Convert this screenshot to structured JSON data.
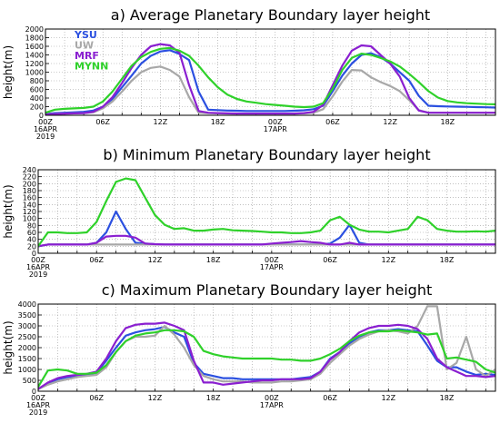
{
  "colors": {
    "YSU": "#2b50e0",
    "UW": "#a8a8a8",
    "MRF": "#8a1fd0",
    "MYNN": "#2fd12a"
  },
  "chart_data": [
    {
      "type": "line",
      "title": "a) Average Planetary Boundary layer height",
      "ylabel": "height(m)",
      "xlabel": "",
      "xlim": [
        0,
        47
      ],
      "ylim": [
        0,
        2000
      ],
      "yticks": [
        "0",
        "200",
        "400",
        "600",
        "800",
        "1000",
        "1200",
        "1400",
        "1600",
        "1800",
        "2000"
      ],
      "xticks": [
        {
          "x": 0,
          "label": "00Z",
          "sub1": "16APR",
          "sub2": "2019"
        },
        {
          "x": 6,
          "label": "06Z"
        },
        {
          "x": 12,
          "label": "12Z"
        },
        {
          "x": 18,
          "label": "18Z"
        },
        {
          "x": 24,
          "label": "00Z",
          "sub1": "17APR"
        },
        {
          "x": 30,
          "label": "06Z"
        },
        {
          "x": 36,
          "label": "12Z"
        },
        {
          "x": 42,
          "label": "18Z"
        }
      ],
      "legend": [
        "YSU",
        "UW",
        "MRF",
        "MYNN"
      ],
      "legend_position": "top-left",
      "x": [
        0,
        1,
        2,
        3,
        4,
        5,
        6,
        7,
        8,
        9,
        10,
        11,
        12,
        13,
        14,
        15,
        16,
        17,
        18,
        19,
        20,
        21,
        22,
        23,
        24,
        25,
        26,
        27,
        28,
        29,
        30,
        31,
        32,
        33,
        34,
        35,
        36,
        37,
        38,
        39,
        40,
        41,
        42,
        43,
        44,
        45,
        46,
        47
      ],
      "series": [
        {
          "name": "YSU",
          "values": [
            30,
            50,
            60,
            70,
            80,
            110,
            200,
            380,
            650,
            920,
            1200,
            1380,
            1480,
            1510,
            1420,
            1280,
            550,
            130,
            120,
            110,
            105,
            100,
            100,
            100,
            100,
            100,
            105,
            115,
            140,
            220,
            560,
            920,
            1200,
            1400,
            1440,
            1350,
            1200,
            1000,
            800,
            450,
            220,
            210,
            205,
            200,
            195,
            190,
            185,
            180
          ]
        },
        {
          "name": "UW",
          "values": [
            20,
            30,
            40,
            45,
            50,
            70,
            160,
            320,
            550,
            800,
            1000,
            1100,
            1130,
            1050,
            900,
            420,
            60,
            50,
            45,
            40,
            40,
            40,
            40,
            40,
            40,
            40,
            40,
            45,
            60,
            140,
            440,
            780,
            1050,
            1040,
            880,
            770,
            680,
            560,
            350,
            120,
            60,
            60,
            60,
            60,
            60,
            60,
            60,
            60
          ]
        },
        {
          "name": "MRF",
          "values": [
            20,
            30,
            40,
            45,
            50,
            80,
            200,
            420,
            750,
            1100,
            1400,
            1600,
            1650,
            1620,
            1450,
            700,
            100,
            60,
            50,
            45,
            40,
            40,
            40,
            40,
            40,
            40,
            40,
            50,
            80,
            240,
            700,
            1150,
            1500,
            1620,
            1600,
            1400,
            1200,
            900,
            400,
            110,
            60,
            60,
            60,
            60,
            60,
            60,
            60,
            60
          ]
        },
        {
          "name": "MYNN",
          "values": [
            60,
            130,
            150,
            160,
            170,
            200,
            320,
            550,
            850,
            1150,
            1350,
            1470,
            1540,
            1560,
            1500,
            1380,
            1150,
            880,
            650,
            480,
            380,
            320,
            290,
            260,
            240,
            220,
            200,
            190,
            200,
            280,
            620,
            1050,
            1330,
            1430,
            1400,
            1330,
            1250,
            1130,
            960,
            770,
            560,
            410,
            330,
            300,
            280,
            270,
            260,
            255
          ]
        }
      ]
    },
    {
      "type": "line",
      "title": "b) Minimum Planetary Boundary layer height",
      "ylabel": "height(m)",
      "xlabel": "",
      "xlim": [
        0,
        47
      ],
      "ylim": [
        0,
        240
      ],
      "yticks": [
        "0",
        "20",
        "40",
        "60",
        "80",
        "100",
        "120",
        "140",
        "160",
        "180",
        "200",
        "220",
        "240"
      ],
      "xticks": [
        {
          "x": 0,
          "label": "00Z",
          "sub1": "16APR",
          "sub2": "2019"
        },
        {
          "x": 6,
          "label": "06Z"
        },
        {
          "x": 12,
          "label": "12Z"
        },
        {
          "x": 18,
          "label": "18Z"
        },
        {
          "x": 24,
          "label": "00Z",
          "sub1": "17APR"
        },
        {
          "x": 30,
          "label": "06Z"
        },
        {
          "x": 36,
          "label": "12Z"
        },
        {
          "x": 42,
          "label": "18Z"
        }
      ],
      "x": [
        0,
        1,
        2,
        3,
        4,
        5,
        6,
        7,
        8,
        9,
        10,
        11,
        12,
        13,
        14,
        15,
        16,
        17,
        18,
        19,
        20,
        21,
        22,
        23,
        24,
        25,
        26,
        27,
        28,
        29,
        30,
        31,
        32,
        33,
        34,
        35,
        36,
        37,
        38,
        39,
        40,
        41,
        42,
        43,
        44,
        45,
        46,
        47
      ],
      "series": [
        {
          "name": "YSU",
          "values": [
            20,
            25,
            25,
            25,
            25,
            25,
            30,
            60,
            120,
            70,
            30,
            28,
            26,
            25,
            25,
            25,
            25,
            25,
            25,
            25,
            25,
            25,
            25,
            25,
            25,
            25,
            25,
            25,
            25,
            25,
            28,
            45,
            82,
            30,
            25,
            25,
            25,
            25,
            25,
            25,
            25,
            25,
            25,
            25,
            25,
            25,
            25,
            25
          ]
        },
        {
          "name": "UW",
          "values": [
            20,
            25,
            25,
            25,
            25,
            25,
            25,
            25,
            25,
            25,
            25,
            25,
            25,
            25,
            25,
            25,
            25,
            25,
            25,
            25,
            25,
            25,
            25,
            25,
            25,
            25,
            25,
            25,
            25,
            25,
            25,
            25,
            25,
            25,
            25,
            25,
            25,
            25,
            25,
            25,
            25,
            25,
            25,
            25,
            25,
            25,
            25,
            25
          ]
        },
        {
          "name": "MRF",
          "values": [
            20,
            25,
            25,
            25,
            25,
            25,
            30,
            48,
            50,
            50,
            45,
            28,
            26,
            25,
            25,
            25,
            25,
            25,
            25,
            25,
            25,
            25,
            25,
            25,
            28,
            30,
            32,
            35,
            32,
            30,
            25,
            25,
            30,
            25,
            25,
            25,
            25,
            25,
            25,
            25,
            25,
            25,
            25,
            25,
            25,
            25,
            25,
            25
          ]
        },
        {
          "name": "MYNN",
          "values": [
            20,
            60,
            60,
            58,
            58,
            60,
            90,
            150,
            205,
            215,
            210,
            160,
            110,
            82,
            70,
            72,
            65,
            65,
            68,
            70,
            66,
            65,
            64,
            62,
            60,
            60,
            58,
            58,
            60,
            65,
            95,
            105,
            82,
            68,
            62,
            62,
            60,
            65,
            70,
            105,
            95,
            70,
            65,
            62,
            62,
            63,
            62,
            65
          ]
        }
      ]
    },
    {
      "type": "line",
      "title": "c) Maximum Planetary Boundary layer height",
      "ylabel": "height(m)",
      "xlabel": "",
      "xlim": [
        0,
        47
      ],
      "ylim": [
        0,
        4000
      ],
      "yticks": [
        "0",
        "500",
        "1000",
        "1500",
        "2000",
        "2500",
        "3000",
        "3500",
        "4000"
      ],
      "xticks": [
        {
          "x": 0,
          "label": "00Z",
          "sub1": "16APR",
          "sub2": "2019"
        },
        {
          "x": 6,
          "label": "06Z"
        },
        {
          "x": 12,
          "label": "12Z"
        },
        {
          "x": 18,
          "label": "18Z"
        },
        {
          "x": 24,
          "label": "00Z",
          "sub1": "17APR"
        },
        {
          "x": 30,
          "label": "06Z"
        },
        {
          "x": 36,
          "label": "12Z"
        },
        {
          "x": 42,
          "label": "18Z"
        }
      ],
      "x": [
        0,
        1,
        2,
        3,
        4,
        5,
        6,
        7,
        8,
        9,
        10,
        11,
        12,
        13,
        14,
        15,
        16,
        17,
        18,
        19,
        20,
        21,
        22,
        23,
        24,
        25,
        26,
        27,
        28,
        29,
        30,
        31,
        32,
        33,
        34,
        35,
        36,
        37,
        38,
        39,
        40,
        41,
        42,
        43,
        44,
        45,
        46,
        47
      ],
      "series": [
        {
          "name": "YSU",
          "values": [
            100,
            350,
            550,
            650,
            700,
            750,
            850,
            1400,
            2000,
            2550,
            2700,
            2800,
            2850,
            2950,
            2700,
            2500,
            1300,
            800,
            700,
            600,
            600,
            550,
            550,
            550,
            550,
            550,
            550,
            600,
            650,
            900,
            1500,
            1800,
            2200,
            2500,
            2700,
            2800,
            2800,
            2850,
            2800,
            2750,
            2100,
            1400,
            1100,
            1100,
            900,
            750,
            800,
            750
          ]
        },
        {
          "name": "UW",
          "values": [
            100,
            300,
            450,
            550,
            650,
            700,
            750,
            1100,
            1800,
            2300,
            2500,
            2500,
            2550,
            3000,
            2600,
            2000,
            1200,
            700,
            550,
            450,
            450,
            450,
            400,
            400,
            400,
            450,
            450,
            500,
            550,
            800,
            1300,
            1700,
            2100,
            2400,
            2600,
            2750,
            2800,
            2750,
            2650,
            3000,
            3900,
            3900,
            1000,
            1300,
            2500,
            1000,
            700,
            1000
          ]
        },
        {
          "name": "MRF",
          "values": [
            100,
            400,
            600,
            700,
            750,
            800,
            900,
            1500,
            2300,
            2900,
            3050,
            3100,
            3100,
            3150,
            3000,
            2800,
            1400,
            400,
            400,
            300,
            350,
            400,
            450,
            500,
            500,
            550,
            550,
            550,
            600,
            900,
            1450,
            1800,
            2300,
            2700,
            2900,
            3000,
            3000,
            3050,
            3000,
            2850,
            2400,
            1500,
            1100,
            900,
            700,
            700,
            650,
            700
          ]
        },
        {
          "name": "MYNN",
          "values": [
            200,
            950,
            1000,
            950,
            800,
            800,
            850,
            1200,
            1800,
            2300,
            2550,
            2650,
            2700,
            2800,
            2800,
            2750,
            2500,
            1850,
            1700,
            1600,
            1550,
            1500,
            1500,
            1500,
            1500,
            1450,
            1450,
            1400,
            1400,
            1500,
            1700,
            1950,
            2300,
            2550,
            2700,
            2750,
            2750,
            2800,
            2750,
            2700,
            2600,
            2650,
            1500,
            1550,
            1450,
            1350,
            1000,
            850
          ]
        }
      ]
    }
  ]
}
